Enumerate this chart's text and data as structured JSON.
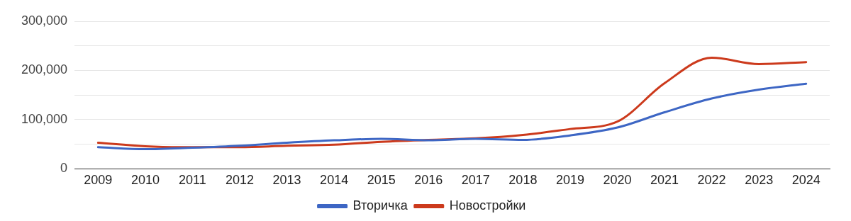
{
  "chart_data": {
    "type": "line",
    "categories": [
      "2009",
      "2010",
      "2011",
      "2012",
      "2013",
      "2014",
      "2015",
      "2016",
      "2017",
      "2018",
      "2019",
      "2020",
      "2021",
      "2022",
      "2023",
      "2024"
    ],
    "series": [
      {
        "name": "Вторичка",
        "color": "#3d66c4",
        "values": [
          44000,
          40000,
          43000,
          47000,
          53000,
          58000,
          61000,
          58000,
          61000,
          59000,
          68000,
          84000,
          115000,
          143000,
          161000,
          173000
        ]
      },
      {
        "name": "Новостройки",
        "color": "#cc3a1c",
        "values": [
          53000,
          46000,
          44000,
          44000,
          47000,
          49000,
          55000,
          59000,
          62000,
          69000,
          81000,
          96000,
          174000,
          226000,
          213000,
          217000
        ]
      }
    ],
    "ylim": [
      0,
      300000
    ],
    "yticks": [
      0,
      {
        "value": 50000,
        "label": null
      },
      {
        "value": 100000,
        "label": "100,000"
      },
      {
        "value": 150000,
        "label": null
      },
      {
        "value": 200000,
        "label": "200,000"
      },
      {
        "value": 250000,
        "label": null
      },
      {
        "value": 300000,
        "label": "300,000"
      }
    ],
    "grid": "y",
    "legend": "bottom",
    "marker": "none",
    "line_style": "solid"
  }
}
